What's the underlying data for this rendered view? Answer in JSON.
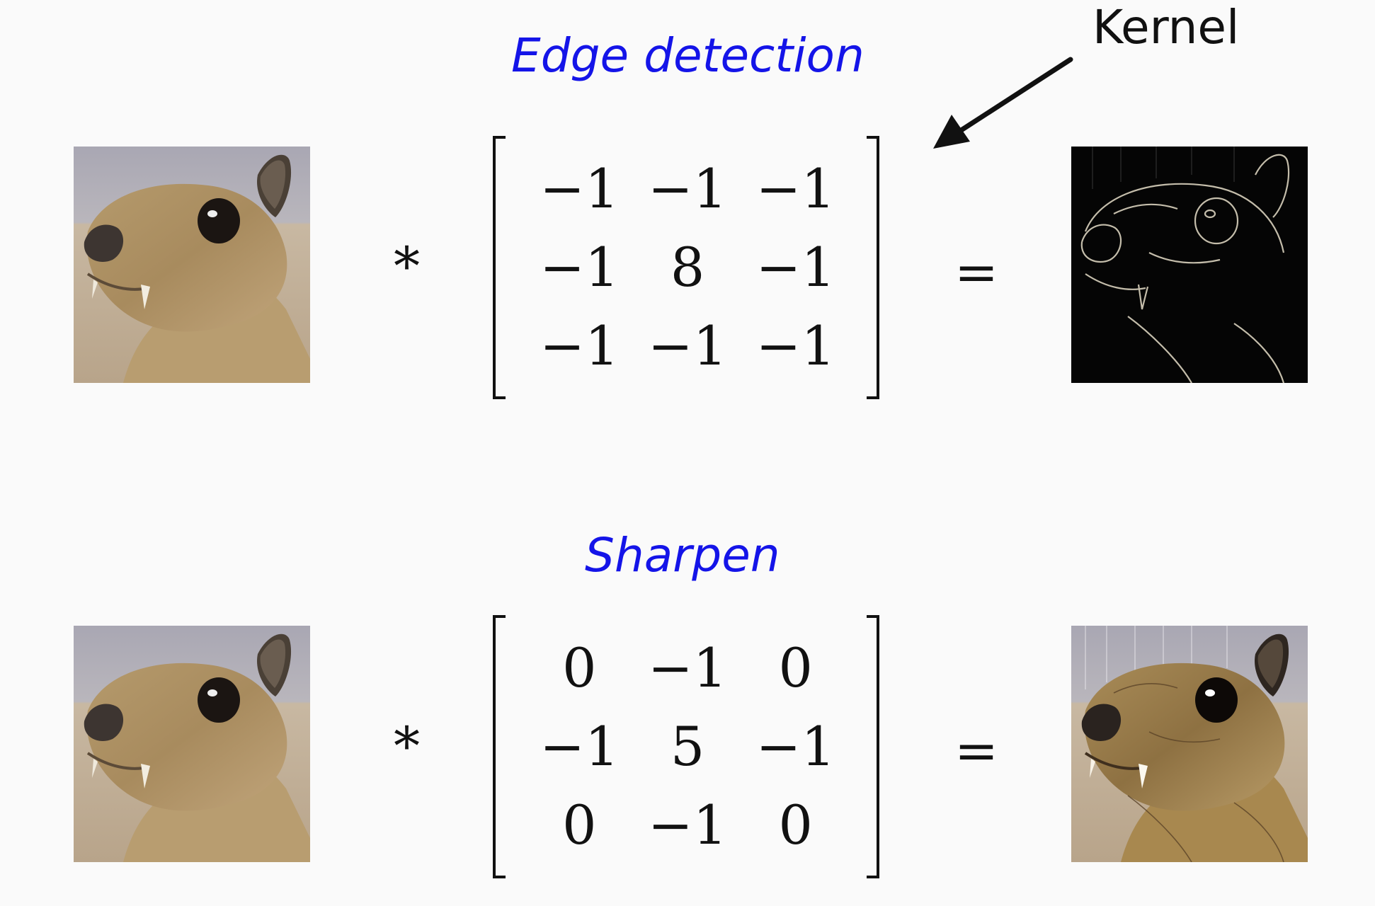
{
  "annotation": {
    "kernel_label": "Kernel"
  },
  "colors": {
    "title": "#1414e8",
    "text": "#111111",
    "background": "#fafafa"
  },
  "rows": [
    {
      "title": "Edge detection",
      "operator": "*",
      "equals": "=",
      "kernel": [
        [
          "−1",
          "−1",
          "−1"
        ],
        [
          "−1",
          "8",
          "−1"
        ],
        [
          "−1",
          "−1",
          "−1"
        ]
      ],
      "input_image": "animal-photo",
      "output_image": "edge-map-photo"
    },
    {
      "title": "Sharpen",
      "operator": "*",
      "equals": "=",
      "kernel": [
        [
          "0",
          "−1",
          "0"
        ],
        [
          "−1",
          "5",
          "−1"
        ],
        [
          "0",
          "−1",
          "0"
        ]
      ],
      "input_image": "animal-photo",
      "output_image": "sharpened-photo"
    }
  ]
}
